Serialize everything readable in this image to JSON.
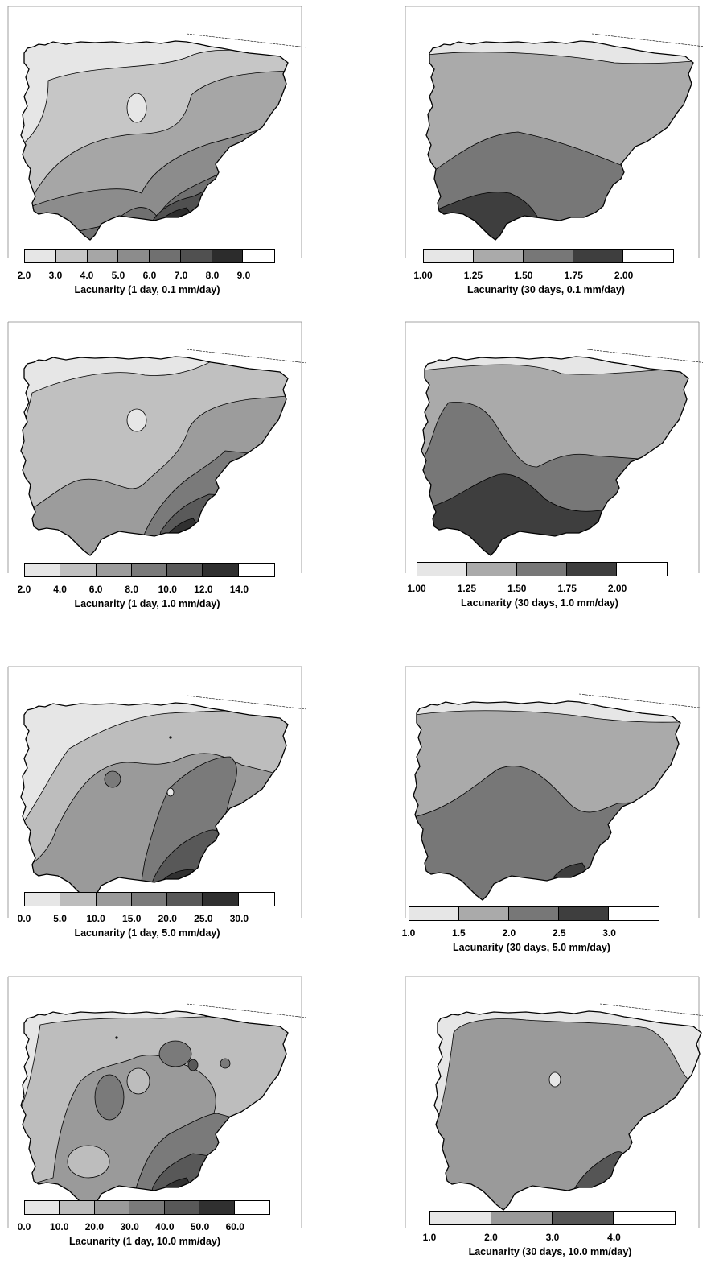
{
  "panels": [
    {
      "id": "p1",
      "caption": "Lacunarity  (1 day, 0.1 mm/day)",
      "legend": {
        "tick_labels": [
          "2.0",
          "3.0",
          "4.0",
          "5.0",
          "6.0",
          "7.0",
          "8.0",
          "9.0"
        ],
        "colors": [
          "#e6e6e6",
          "#c6c6c6",
          "#a6a6a6",
          "#8c8c8c",
          "#707070",
          "#505050",
          "#2c2c2c",
          "#ffffff"
        ]
      },
      "zone_colors": [
        "#e6e6e6",
        "#c6c6c6",
        "#a6a6a6",
        "#8c8c8c",
        "#707070",
        "#505050",
        "#2c2c2c"
      ]
    },
    {
      "id": "p2",
      "caption": "Lacunarity  (30 days, 0.1 mm/day)",
      "legend": {
        "tick_labels": [
          "1.00",
          "1.25",
          "1.50",
          "1.75",
          "2.00"
        ],
        "colors": [
          "#e6e6e6",
          "#aaaaaa",
          "#777777",
          "#3e3e3e",
          "#ffffff"
        ]
      },
      "zone_colors": [
        "#e6e6e6",
        "#aaaaaa",
        "#777777",
        "#3e3e3e"
      ]
    },
    {
      "id": "p3",
      "caption": "Lacunarity  (1 day, 1.0 mm/day)",
      "legend": {
        "tick_labels": [
          "2.0",
          "4.0",
          "6.0",
          "8.0",
          "10.0",
          "12.0",
          "14.0"
        ],
        "colors": [
          "#e6e6e6",
          "#c0c0c0",
          "#9c9c9c",
          "#7a7a7a",
          "#5a5a5a",
          "#303030",
          "#ffffff"
        ]
      },
      "zone_colors": [
        "#e6e6e6",
        "#c0c0c0",
        "#9c9c9c",
        "#7a7a7a",
        "#5a5a5a",
        "#303030"
      ]
    },
    {
      "id": "p4",
      "caption": "Lacunarity  (30 days, 1.0 mm/day)",
      "legend": {
        "tick_labels": [
          "1.00",
          "1.25",
          "1.50",
          "1.75",
          "2.00"
        ],
        "colors": [
          "#e6e6e6",
          "#aaaaaa",
          "#777777",
          "#3e3e3e",
          "#ffffff"
        ]
      },
      "zone_colors": [
        "#e6e6e6",
        "#aaaaaa",
        "#777777",
        "#3e3e3e"
      ]
    },
    {
      "id": "p5",
      "caption": "Lacunarity  (1 day, 5.0 mm/day)",
      "legend": {
        "tick_labels": [
          "0.0",
          "5.0",
          "10.0",
          "15.0",
          "20.0",
          "25.0",
          "30.0"
        ],
        "colors": [
          "#e6e6e6",
          "#bdbdbd",
          "#9a9a9a",
          "#7a7a7a",
          "#585858",
          "#303030",
          "#ffffff"
        ]
      },
      "zone_colors": [
        "#e6e6e6",
        "#bdbdbd",
        "#9a9a9a",
        "#7a7a7a",
        "#585858",
        "#303030"
      ]
    },
    {
      "id": "p6",
      "caption": "Lacunarity  (30 days, 5.0 mm/day)",
      "legend": {
        "tick_labels": [
          "1.0",
          "1.5",
          "2.0",
          "2.5",
          "3.0"
        ],
        "colors": [
          "#e6e6e6",
          "#aaaaaa",
          "#777777",
          "#3e3e3e",
          "#ffffff"
        ]
      },
      "zone_colors": [
        "#e6e6e6",
        "#aaaaaa",
        "#777777",
        "#3e3e3e"
      ]
    },
    {
      "id": "p7",
      "caption": "Lacunarity  (1 day, 10.0 mm/day)",
      "legend": {
        "tick_labels": [
          "0.0",
          "10.0",
          "20.0",
          "30.0",
          "40.0",
          "50.0",
          "60.0"
        ],
        "colors": [
          "#e6e6e6",
          "#bdbdbd",
          "#9a9a9a",
          "#7a7a7a",
          "#585858",
          "#303030",
          "#ffffff"
        ]
      },
      "zone_colors": [
        "#e6e6e6",
        "#bdbdbd",
        "#9a9a9a",
        "#7a7a7a",
        "#585858",
        "#303030"
      ]
    },
    {
      "id": "p8",
      "caption": "Lacunarity  (30 days, 10.0 mm/day)",
      "legend": {
        "tick_labels": [
          "1.0",
          "2.0",
          "3.0",
          "4.0"
        ],
        "colors": [
          "#e6e6e6",
          "#9a9a9a",
          "#555555",
          "#ffffff"
        ]
      },
      "zone_colors": [
        "#e6e6e6",
        "#9a9a9a",
        "#555555"
      ]
    }
  ]
}
